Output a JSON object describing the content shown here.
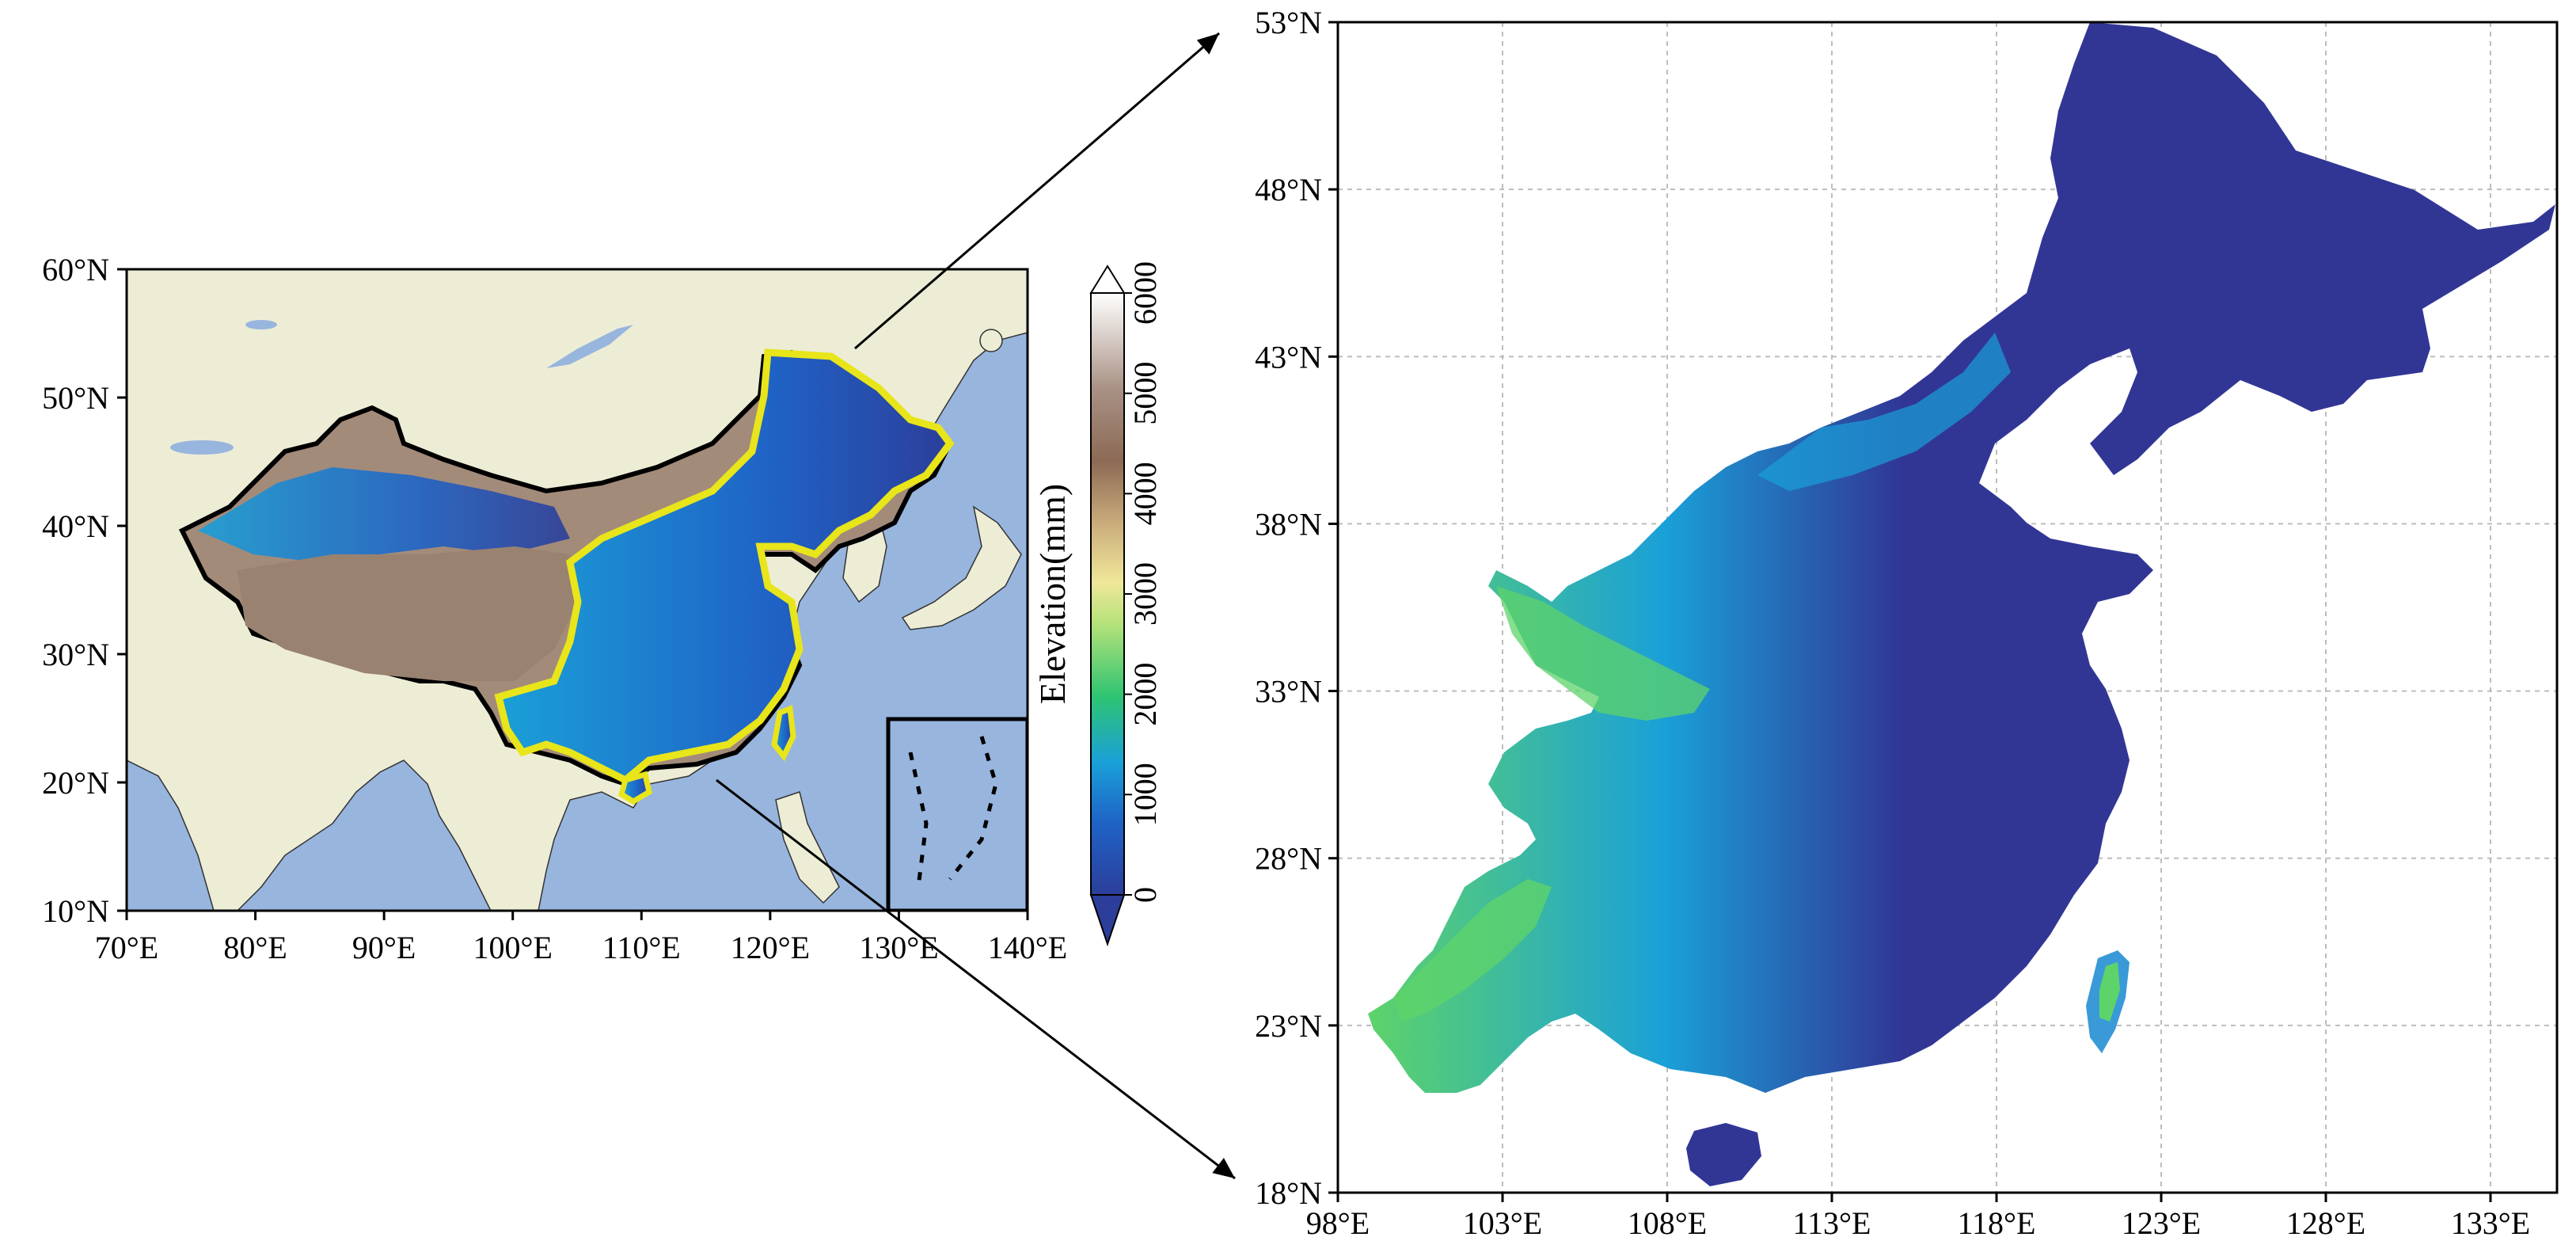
{
  "overview_map": {
    "lon_ticks": [
      "70°E",
      "80°E",
      "90°E",
      "100°E",
      "110°E",
      "120°E",
      "130°E",
      "140°E"
    ],
    "lat_ticks": [
      "60°N",
      "50°N",
      "40°N",
      "30°N",
      "20°N",
      "10°N"
    ],
    "colors": {
      "land": "#ededd6",
      "ocean": "#98b5de",
      "border": "#000000",
      "region_outline": "#e8e51a"
    }
  },
  "detail_map": {
    "lon_ticks": [
      "98°E",
      "103°E",
      "108°E",
      "113°E",
      "118°E",
      "123°E",
      "128°E",
      "133°E"
    ],
    "lat_ticks": [
      "53°N",
      "48°N",
      "43°N",
      "38°N",
      "33°N",
      "28°N",
      "23°N",
      "18°N"
    ],
    "colors": {
      "low": "#313695",
      "mid": "#1f78d1",
      "high": "#5ed36a",
      "grid": "#bdbdbd"
    }
  },
  "colorbar": {
    "label": "Elevation(mm)",
    "ticks": [
      "0",
      "1000",
      "2000",
      "3000",
      "4000",
      "5000",
      "6000"
    ],
    "extend": "both"
  }
}
